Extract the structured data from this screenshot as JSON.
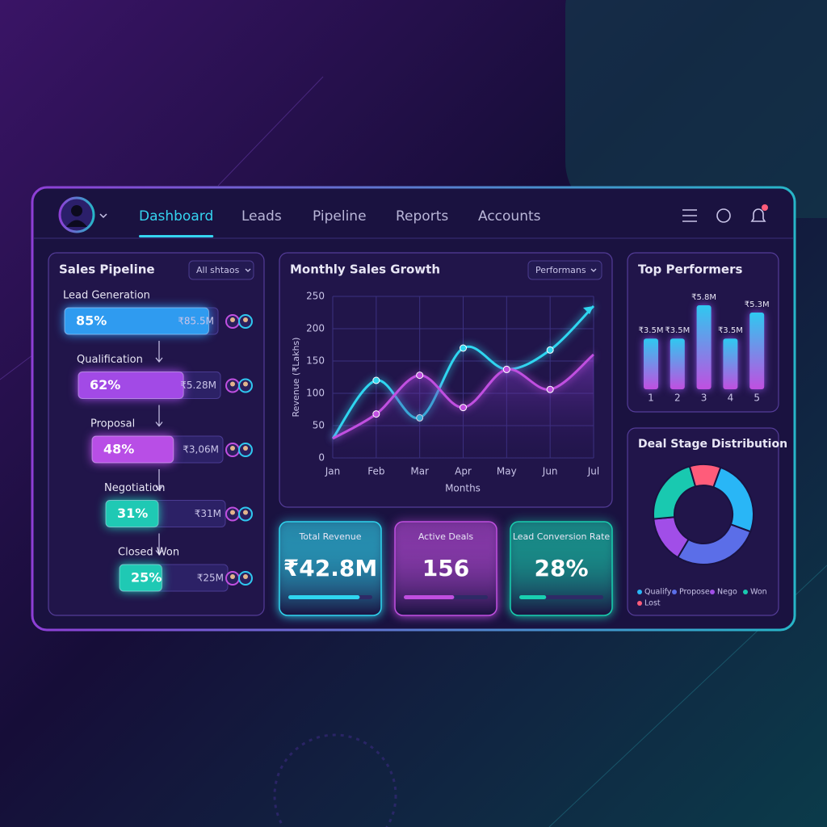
{
  "nav": {
    "items": [
      "Dashboard",
      "Leads",
      "Pipeline",
      "Reports",
      "Accounts"
    ]
  },
  "pipeline": {
    "title": "Sales Pipeline",
    "filter": "All shtaos",
    "stages": [
      {
        "name": "Lead Generation",
        "value": 85,
        "value_label": "85%",
        "amount": "₹85.5M",
        "color": "#2f9bf0"
      },
      {
        "name": "Qualification",
        "value": 62,
        "value_label": "62%",
        "amount": "₹5.28M",
        "color": "#a24ae6"
      },
      {
        "name": "Proposal",
        "value": 48,
        "value_label": "48%",
        "amount": "₹3,06M",
        "color": "#b84ee6"
      },
      {
        "name": "Negotiation",
        "value": 31,
        "value_label": "31%",
        "amount": "₹31M",
        "color": "#1fc9b4"
      },
      {
        "name": "Closed Won",
        "value": 25,
        "value_label": "25%",
        "amount": "₹25M",
        "color": "#1fc9b4"
      }
    ]
  },
  "sales_growth": {
    "type": "line",
    "title": "Monthly Sales Growth",
    "filter": "Performans",
    "x_label": "Months",
    "y_label": "Revenue (₹Lakhs)",
    "categories": [
      "Jan",
      "Feb",
      "Mar",
      "Apr",
      "May",
      "Jun",
      "Jul"
    ],
    "ylim": [
      0,
      250
    ],
    "yticks": [
      0,
      50,
      100,
      150,
      200,
      250
    ],
    "grid": true,
    "series": [
      {
        "color": "#2fd6f0",
        "values": [
          30,
          120,
          62,
          170,
          137,
          167,
          235
        ]
      },
      {
        "color": "#c04fe0",
        "values": [
          30,
          68,
          128,
          78,
          137,
          106,
          160
        ]
      }
    ]
  },
  "top_performers": {
    "type": "bar",
    "title": "Top Performers",
    "categories": [
      "1",
      "2",
      "3",
      "4",
      "5"
    ],
    "values": [
      3.5,
      3.5,
      5.8,
      3.5,
      5.3
    ],
    "value_labels": [
      "₹3.5M",
      "₹3.5M",
      "₹5.8M",
      "₹3.5M",
      "₹5.3M"
    ],
    "colors": [
      "#2fc8f0",
      "#c04fe0"
    ]
  },
  "deal_stages": {
    "type": "pie",
    "title": "Deal Stage Distribution",
    "categories": [
      "Qualify",
      "Propose",
      "Nego",
      "Won",
      "Lost"
    ],
    "values": [
      25,
      28,
      15,
      22,
      10
    ],
    "colors": [
      "#29b6f6",
      "#5b6ee8",
      "#a14ee8",
      "#19c9b0",
      "#ff5c7a"
    ]
  },
  "kpis": [
    {
      "label": "Total Revenue",
      "value": "₹42.8M",
      "progress": 85,
      "color": "#2fd6f0"
    },
    {
      "label": "Active Deals",
      "value": 156,
      "progress": 60,
      "color": "#c04fe0"
    },
    {
      "label": "Lead Conversion Rate",
      "value": "28%",
      "progress": 32,
      "color": "#19d0b0"
    }
  ]
}
